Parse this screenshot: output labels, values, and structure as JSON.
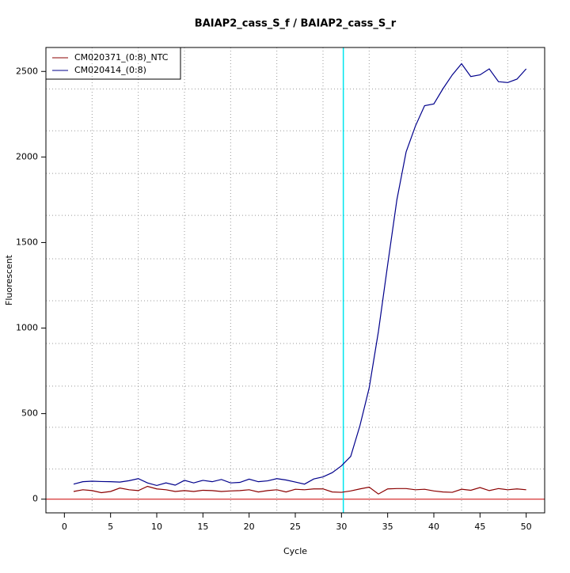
{
  "chart_data": {
    "type": "line",
    "title": "BAIAP2_cass_S_f / BAIAP2_cass_S_r",
    "xlabel": "Cycle",
    "ylabel": "Fluorescent",
    "x": [
      1,
      2,
      3,
      4,
      5,
      6,
      7,
      8,
      9,
      10,
      11,
      12,
      13,
      14,
      15,
      16,
      17,
      18,
      19,
      20,
      21,
      22,
      23,
      24,
      25,
      26,
      27,
      28,
      29,
      30,
      31,
      32,
      33,
      34,
      35,
      36,
      37,
      38,
      39,
      40,
      41,
      42,
      43,
      44,
      45,
      46,
      47,
      48,
      49,
      50
    ],
    "series": [
      {
        "name": "CM020371_(0:8)_NTC",
        "color": "#8b0000",
        "values": [
          45,
          55,
          50,
          38,
          45,
          65,
          55,
          50,
          75,
          60,
          55,
          45,
          50,
          45,
          52,
          50,
          45,
          48,
          50,
          55,
          42,
          50,
          55,
          42,
          58,
          55,
          60,
          60,
          42,
          40,
          48,
          60,
          70,
          30,
          60,
          62,
          62,
          55,
          58,
          48,
          42,
          40,
          58,
          52,
          68,
          50,
          62,
          55,
          60,
          55
        ]
      },
      {
        "name": "CM020414_(0:8)",
        "color": "#00008b",
        "values": [
          88,
          102,
          105,
          103,
          102,
          100,
          108,
          120,
          95,
          80,
          95,
          82,
          110,
          95,
          110,
          102,
          115,
          95,
          98,
          117,
          102,
          107,
          120,
          112,
          100,
          88,
          118,
          130,
          155,
          195,
          250,
          430,
          650,
          980,
          1370,
          1750,
          2030,
          2180,
          2300,
          2310,
          2400,
          2480,
          2545,
          2470,
          2480,
          2515,
          2440,
          2435,
          2455,
          2515
        ]
      }
    ],
    "xlim": [
      -2,
      52
    ],
    "ylim": [
      -80,
      2640
    ],
    "xticks": [
      0,
      5,
      10,
      15,
      20,
      25,
      30,
      35,
      40,
      45,
      50
    ],
    "yticks": [
      0,
      500,
      1000,
      1500,
      2000,
      2500
    ],
    "xgrid": [
      3,
      8,
      13,
      18,
      23,
      28,
      33,
      38,
      43,
      48
    ],
    "ygrid": [
      176,
      420,
      661,
      910,
      1160,
      1405,
      1659,
      1904,
      2153,
      2398
    ],
    "threshold_cycle": 30.2,
    "threshold_color": "#00e5ee",
    "baseline": 0,
    "baseline_color": "#cc0000",
    "legend": "top-left"
  }
}
